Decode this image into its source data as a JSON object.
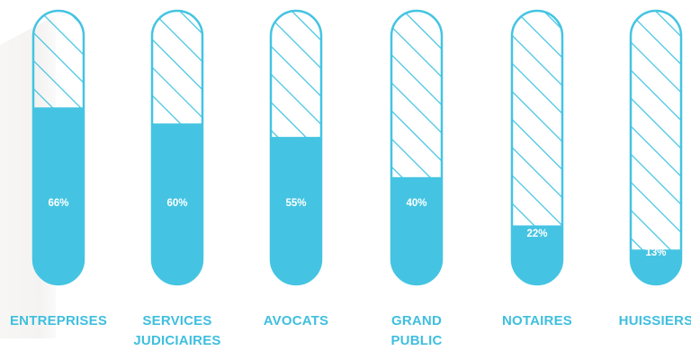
{
  "chart_data": {
    "type": "bar",
    "categories": [
      "ENTREPRISES",
      "SERVICES JUDICIAIRES",
      "AVOCATS",
      "GRAND PUBLIC",
      "NOTAIRES",
      "HUISSIERS"
    ],
    "values": [
      66,
      60,
      55,
      40,
      22,
      13
    ],
    "value_labels": [
      "66%",
      "60%",
      "55%",
      "40%",
      "22%",
      "13%"
    ],
    "ylim": [
      0,
      100
    ],
    "title": "",
    "xlabel": "",
    "ylabel": ""
  },
  "colors": {
    "fill": "#44c4e2",
    "outline": "#44c4e2",
    "label": "#3fbfdf",
    "value_text": "#ffffff"
  }
}
